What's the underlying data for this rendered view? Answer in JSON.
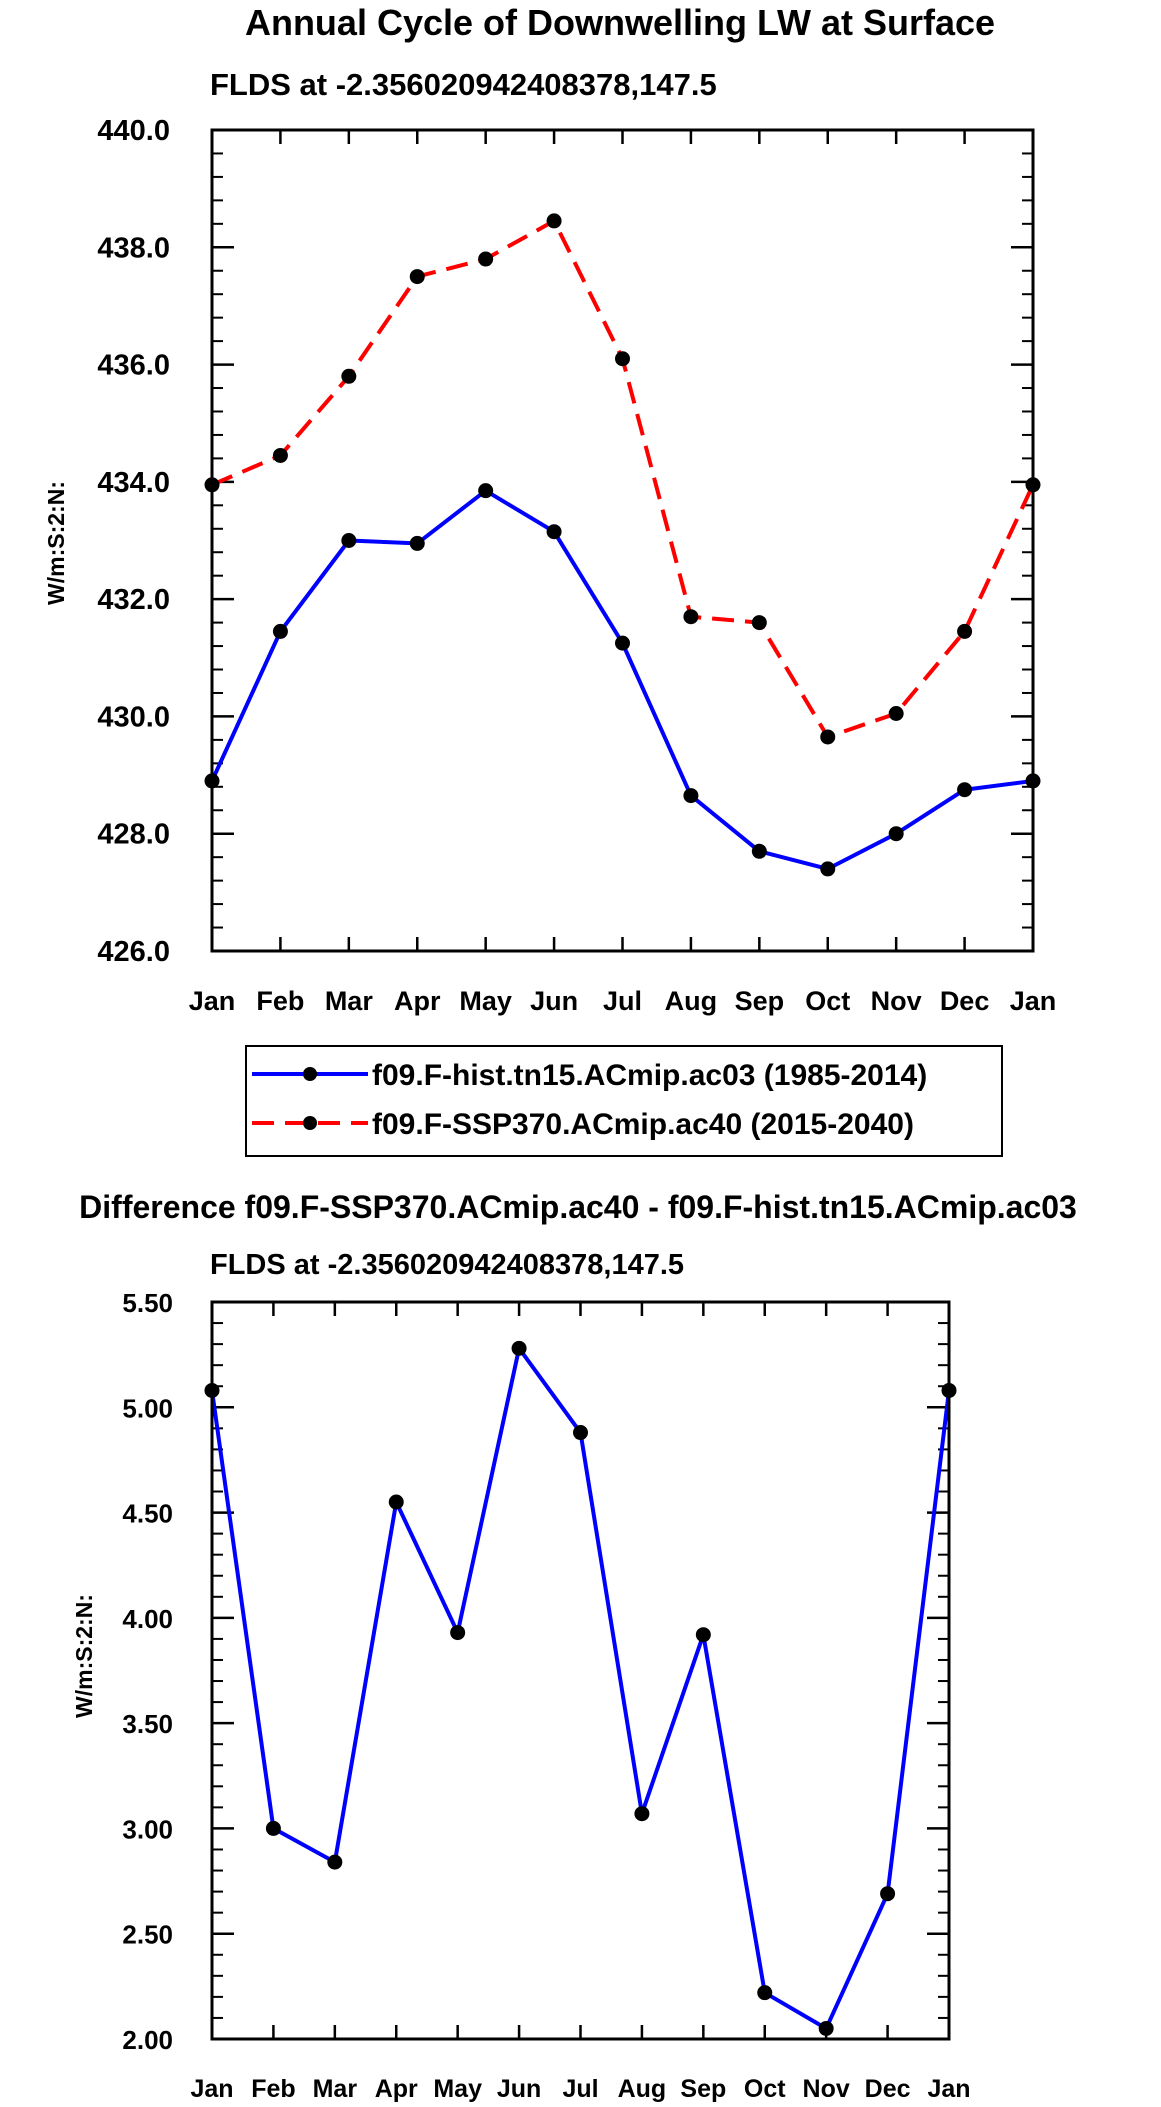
{
  "chart_data": [
    {
      "type": "line",
      "title": "Annual Cycle of Downwelling LW at Surface",
      "subtitle": "FLDS at -2.356020942408378,147.5",
      "xlabel": "",
      "ylabel": "W/m:S:2:N:",
      "categories": [
        "Jan",
        "Feb",
        "Mar",
        "Apr",
        "May",
        "Jun",
        "Jul",
        "Aug",
        "Sep",
        "Oct",
        "Nov",
        "Dec",
        "Jan"
      ],
      "ylim": [
        426.0,
        440.0
      ],
      "yticks": [
        "426.0",
        "428.0",
        "430.0",
        "432.0",
        "434.0",
        "436.0",
        "438.0",
        "440.0"
      ],
      "grid": false,
      "legend_position": "bottom",
      "series": [
        {
          "name": "f09.F-hist.tn15.ACmip.ac03 (1985-2014)",
          "color": "#0000ff",
          "dash": "solid",
          "values": [
            428.9,
            431.45,
            433.0,
            432.95,
            433.85,
            433.15,
            431.25,
            428.65,
            427.7,
            427.4,
            428.0,
            428.75,
            428.9
          ]
        },
        {
          "name": "f09.F-SSP370.ACmip.ac40 (2015-2040)",
          "color": "#ff0000",
          "dash": "dashed",
          "values": [
            433.95,
            434.45,
            435.8,
            437.5,
            437.8,
            438.45,
            436.1,
            431.7,
            431.6,
            429.65,
            430.05,
            431.45,
            433.95
          ]
        }
      ]
    },
    {
      "type": "line",
      "title": "Difference f09.F-SSP370.ACmip.ac40 - f09.F-hist.tn15.ACmip.ac03",
      "subtitle": "FLDS at -2.356020942408378,147.5",
      "xlabel": "",
      "ylabel": "W/m:S:2:N:",
      "categories": [
        "Jan",
        "Feb",
        "Mar",
        "Apr",
        "May",
        "Jun",
        "Jul",
        "Aug",
        "Sep",
        "Oct",
        "Nov",
        "Dec",
        "Jan"
      ],
      "ylim": [
        2.0,
        5.5
      ],
      "yticks": [
        "2.00",
        "2.50",
        "3.00",
        "3.50",
        "4.00",
        "4.50",
        "5.00",
        "5.50"
      ],
      "grid": false,
      "series": [
        {
          "name": "Difference",
          "color": "#0000ff",
          "dash": "solid",
          "values": [
            5.08,
            3.0,
            2.84,
            4.55,
            3.93,
            5.28,
            4.88,
            3.07,
            3.92,
            2.22,
            2.05,
            2.69,
            5.08
          ]
        }
      ]
    }
  ]
}
